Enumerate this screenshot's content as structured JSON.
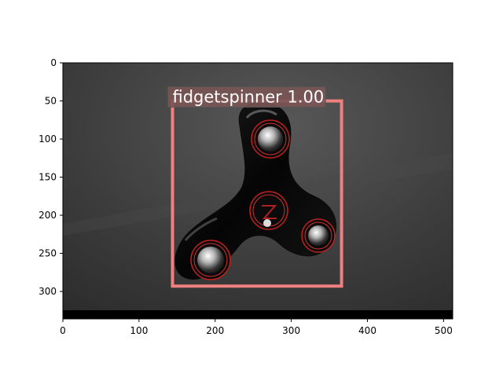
{
  "image": {
    "description_colors": {
      "background": "#3e3e3e",
      "bottom_band": "#000000"
    },
    "x_range": [
      0,
      512
    ],
    "y_range": [
      0,
      336
    ]
  },
  "axes": {
    "x_ticks": [
      {
        "value": 0,
        "label": "0"
      },
      {
        "value": 100,
        "label": "100"
      },
      {
        "value": 200,
        "label": "200"
      },
      {
        "value": 300,
        "label": "300"
      },
      {
        "value": 400,
        "label": "400"
      },
      {
        "value": 500,
        "label": "500"
      }
    ],
    "y_ticks": [
      {
        "value": 0,
        "label": "0"
      },
      {
        "value": 50,
        "label": "50"
      },
      {
        "value": 100,
        "label": "100"
      },
      {
        "value": 150,
        "label": "150"
      },
      {
        "value": 200,
        "label": "200"
      },
      {
        "value": 250,
        "label": "250"
      },
      {
        "value": 300,
        "label": "300"
      }
    ]
  },
  "detection": {
    "label": "fidgetspinner 1.00",
    "class_name": "fidgetspinner",
    "score": 1.0,
    "box": {
      "x_min": 144,
      "y_min": 50,
      "x_max": 366,
      "y_max": 293
    },
    "box_color": "#f08080",
    "label_bg_color": "#7a5555"
  }
}
